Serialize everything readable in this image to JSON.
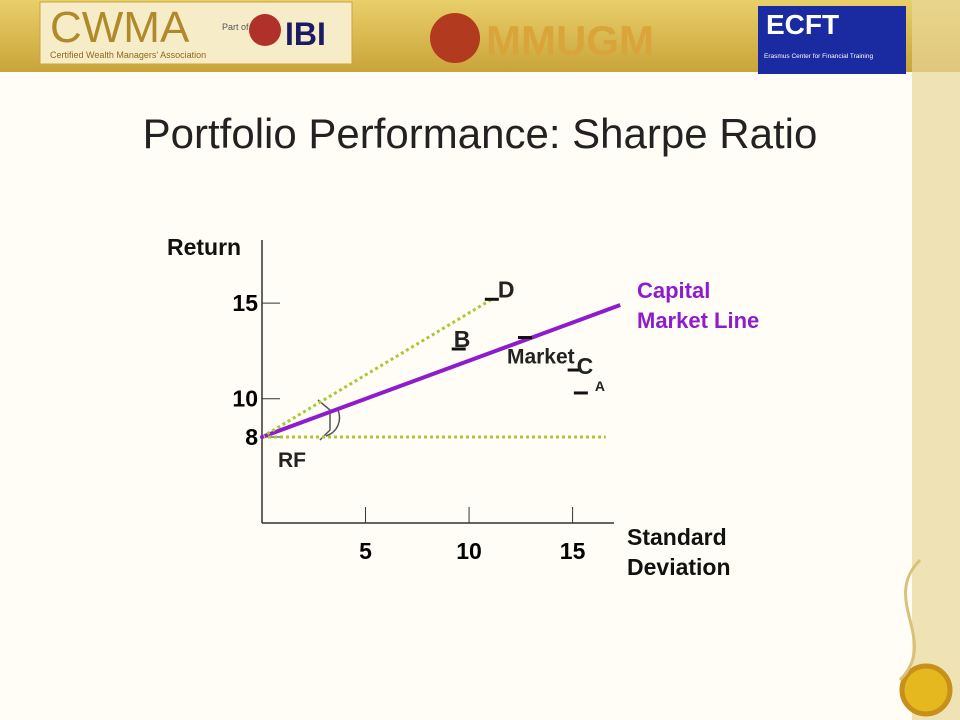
{
  "header": {
    "logos": [
      "CWMA",
      "Certified Wealth Managers' Association",
      "Part of",
      "IBI",
      "MMUGM",
      "ECFT",
      "Erasmus Center for Financial Training"
    ]
  },
  "chart_data": {
    "type": "scatter",
    "title": "Portfolio Performance: Sharpe Ratio",
    "y_label": "Return",
    "x_label": "Standard Deviation",
    "xlim": [
      0,
      17
    ],
    "ylim": [
      3.5,
      18.3
    ],
    "xticks": [
      5,
      10,
      15
    ],
    "yticks": [
      8,
      10,
      15
    ],
    "lines": [
      {
        "name": "Capital Market Line",
        "color": "#8e1ccc",
        "style": "solid",
        "x": [
          0,
          17.3
        ],
        "y": [
          8,
          14.9
        ]
      },
      {
        "color": "#a8c83a",
        "style": "dotted",
        "x": [
          0,
          11.1
        ],
        "y": [
          8,
          15.2
        ]
      },
      {
        "color": "#a8c83a",
        "style": "dotted",
        "x": [
          0,
          16.6
        ],
        "y": [
          8,
          8
        ]
      }
    ],
    "points": [
      {
        "label": "D",
        "x": 11.1,
        "y": 15.2
      },
      {
        "label": "Market",
        "x": 12.7,
        "y": 13.2
      },
      {
        "label": "B",
        "x": 9.5,
        "y": 12.6
      },
      {
        "label": "C",
        "x": 15.1,
        "y": 11.5
      },
      {
        "label": "A",
        "x": 15.4,
        "y": 10.3
      },
      {
        "label": "RF",
        "x": 0,
        "y": 8
      }
    ]
  }
}
